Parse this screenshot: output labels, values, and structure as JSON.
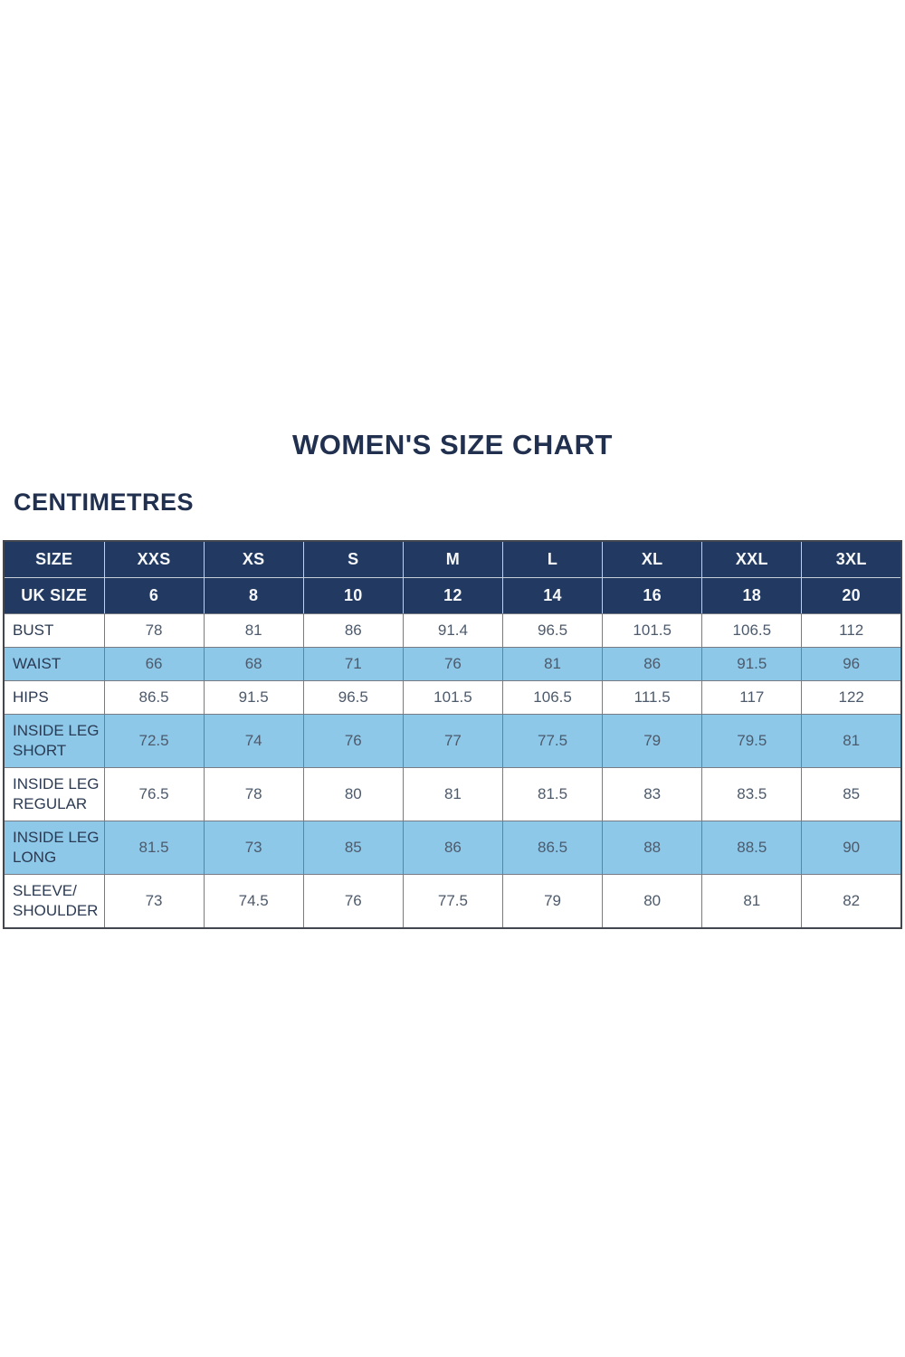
{
  "colors": {
    "navy": "#223a61",
    "light_blue": "#8dc8e9",
    "title_text": "#20304e",
    "label_text": "#2b3a52",
    "value_text": "#4d5a6b"
  },
  "chart_data": {
    "type": "table",
    "title": "WOMEN'S SIZE CHART",
    "unit": "CENTIMETRES",
    "header_rows": [
      {
        "label": "SIZE",
        "values": [
          "XXS",
          "XS",
          "S",
          "M",
          "L",
          "XL",
          "XXL",
          "3XL"
        ]
      },
      {
        "label": "UK SIZE",
        "values": [
          "6",
          "8",
          "10",
          "12",
          "14",
          "16",
          "18",
          "20"
        ]
      }
    ],
    "rows": [
      {
        "label": "BUST",
        "values": [
          "78",
          "81",
          "86",
          "91.4",
          "96.5",
          "101.5",
          "106.5",
          "112"
        ]
      },
      {
        "label": "WAIST",
        "values": [
          "66",
          "68",
          "71",
          "76",
          "81",
          "86",
          "91.5",
          "96"
        ]
      },
      {
        "label": "HIPS",
        "values": [
          "86.5",
          "91.5",
          "96.5",
          "101.5",
          "106.5",
          "111.5",
          "117",
          "122"
        ]
      },
      {
        "label": "INSIDE LEG SHORT",
        "values": [
          "72.5",
          "74",
          "76",
          "77",
          "77.5",
          "79",
          "79.5",
          "81"
        ]
      },
      {
        "label": "INSIDE LEG REGULAR",
        "values": [
          "76.5",
          "78",
          "80",
          "81",
          "81.5",
          "83",
          "83.5",
          "85"
        ]
      },
      {
        "label": "INSIDE LEG LONG",
        "values": [
          "81.5",
          "73",
          "85",
          "86",
          "86.5",
          "88",
          "88.5",
          "90"
        ]
      },
      {
        "label": "SLEEVE/ SHOULDER",
        "values": [
          "73",
          "74.5",
          "76",
          "77.5",
          "79",
          "80",
          "81",
          "82"
        ]
      }
    ]
  }
}
